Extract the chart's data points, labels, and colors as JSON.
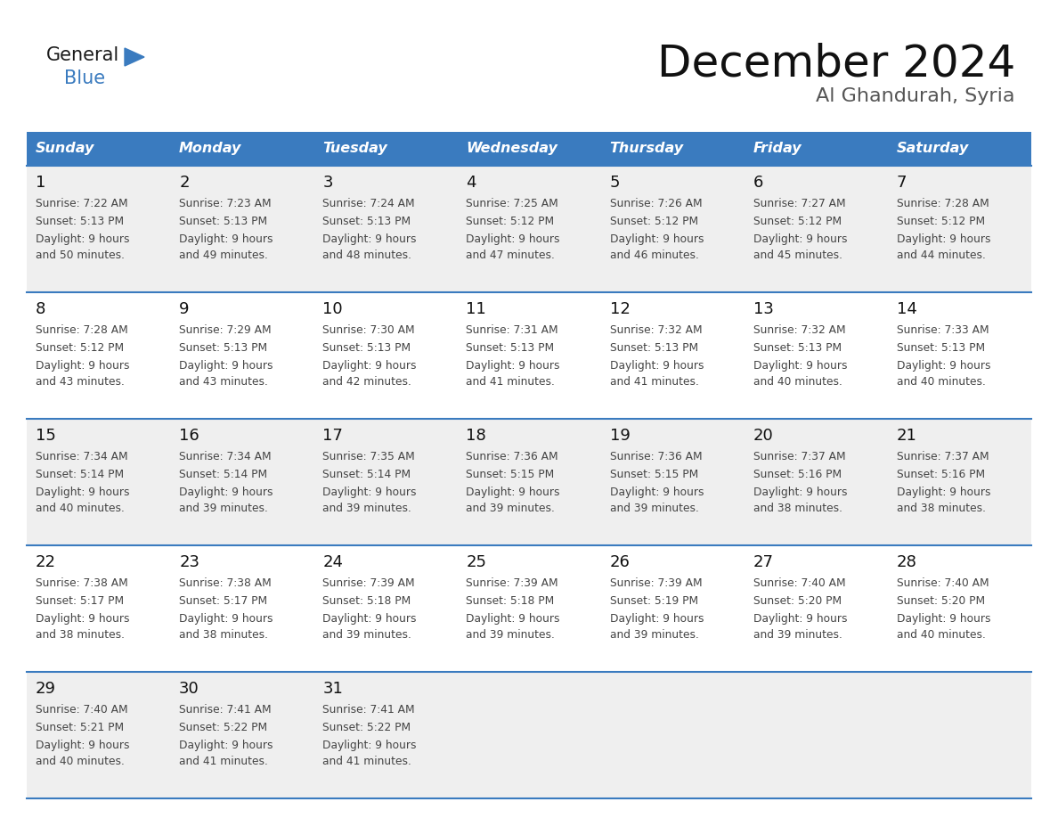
{
  "title": "December 2024",
  "subtitle": "Al Ghandurah, Syria",
  "days_of_week": [
    "Sunday",
    "Monday",
    "Tuesday",
    "Wednesday",
    "Thursday",
    "Friday",
    "Saturday"
  ],
  "header_bg": "#3a7bbf",
  "header_text": "#ffffff",
  "row_bg_odd": "#efefef",
  "row_bg_even": "#ffffff",
  "cell_text_color": "#444444",
  "day_num_color": "#111111",
  "border_color": "#3a7bbf",
  "logo_general_color": "#1a1a1a",
  "logo_blue_color": "#3a7bbf",
  "calendar_data": [
    [
      {
        "day": 1,
        "sunrise": "7:22 AM",
        "sunset": "5:13 PM",
        "daylight_h": "9 hours",
        "daylight_m": "and 50 minutes."
      },
      {
        "day": 2,
        "sunrise": "7:23 AM",
        "sunset": "5:13 PM",
        "daylight_h": "9 hours",
        "daylight_m": "and 49 minutes."
      },
      {
        "day": 3,
        "sunrise": "7:24 AM",
        "sunset": "5:13 PM",
        "daylight_h": "9 hours",
        "daylight_m": "and 48 minutes."
      },
      {
        "day": 4,
        "sunrise": "7:25 AM",
        "sunset": "5:12 PM",
        "daylight_h": "9 hours",
        "daylight_m": "and 47 minutes."
      },
      {
        "day": 5,
        "sunrise": "7:26 AM",
        "sunset": "5:12 PM",
        "daylight_h": "9 hours",
        "daylight_m": "and 46 minutes."
      },
      {
        "day": 6,
        "sunrise": "7:27 AM",
        "sunset": "5:12 PM",
        "daylight_h": "9 hours",
        "daylight_m": "and 45 minutes."
      },
      {
        "day": 7,
        "sunrise": "7:28 AM",
        "sunset": "5:12 PM",
        "daylight_h": "9 hours",
        "daylight_m": "and 44 minutes."
      }
    ],
    [
      {
        "day": 8,
        "sunrise": "7:28 AM",
        "sunset": "5:12 PM",
        "daylight_h": "9 hours",
        "daylight_m": "and 43 minutes."
      },
      {
        "day": 9,
        "sunrise": "7:29 AM",
        "sunset": "5:13 PM",
        "daylight_h": "9 hours",
        "daylight_m": "and 43 minutes."
      },
      {
        "day": 10,
        "sunrise": "7:30 AM",
        "sunset": "5:13 PM",
        "daylight_h": "9 hours",
        "daylight_m": "and 42 minutes."
      },
      {
        "day": 11,
        "sunrise": "7:31 AM",
        "sunset": "5:13 PM",
        "daylight_h": "9 hours",
        "daylight_m": "and 41 minutes."
      },
      {
        "day": 12,
        "sunrise": "7:32 AM",
        "sunset": "5:13 PM",
        "daylight_h": "9 hours",
        "daylight_m": "and 41 minutes."
      },
      {
        "day": 13,
        "sunrise": "7:32 AM",
        "sunset": "5:13 PM",
        "daylight_h": "9 hours",
        "daylight_m": "and 40 minutes."
      },
      {
        "day": 14,
        "sunrise": "7:33 AM",
        "sunset": "5:13 PM",
        "daylight_h": "9 hours",
        "daylight_m": "and 40 minutes."
      }
    ],
    [
      {
        "day": 15,
        "sunrise": "7:34 AM",
        "sunset": "5:14 PM",
        "daylight_h": "9 hours",
        "daylight_m": "and 40 minutes."
      },
      {
        "day": 16,
        "sunrise": "7:34 AM",
        "sunset": "5:14 PM",
        "daylight_h": "9 hours",
        "daylight_m": "and 39 minutes."
      },
      {
        "day": 17,
        "sunrise": "7:35 AM",
        "sunset": "5:14 PM",
        "daylight_h": "9 hours",
        "daylight_m": "and 39 minutes."
      },
      {
        "day": 18,
        "sunrise": "7:36 AM",
        "sunset": "5:15 PM",
        "daylight_h": "9 hours",
        "daylight_m": "and 39 minutes."
      },
      {
        "day": 19,
        "sunrise": "7:36 AM",
        "sunset": "5:15 PM",
        "daylight_h": "9 hours",
        "daylight_m": "and 39 minutes."
      },
      {
        "day": 20,
        "sunrise": "7:37 AM",
        "sunset": "5:16 PM",
        "daylight_h": "9 hours",
        "daylight_m": "and 38 minutes."
      },
      {
        "day": 21,
        "sunrise": "7:37 AM",
        "sunset": "5:16 PM",
        "daylight_h": "9 hours",
        "daylight_m": "and 38 minutes."
      }
    ],
    [
      {
        "day": 22,
        "sunrise": "7:38 AM",
        "sunset": "5:17 PM",
        "daylight_h": "9 hours",
        "daylight_m": "and 38 minutes."
      },
      {
        "day": 23,
        "sunrise": "7:38 AM",
        "sunset": "5:17 PM",
        "daylight_h": "9 hours",
        "daylight_m": "and 38 minutes."
      },
      {
        "day": 24,
        "sunrise": "7:39 AM",
        "sunset": "5:18 PM",
        "daylight_h": "9 hours",
        "daylight_m": "and 39 minutes."
      },
      {
        "day": 25,
        "sunrise": "7:39 AM",
        "sunset": "5:18 PM",
        "daylight_h": "9 hours",
        "daylight_m": "and 39 minutes."
      },
      {
        "day": 26,
        "sunrise": "7:39 AM",
        "sunset": "5:19 PM",
        "daylight_h": "9 hours",
        "daylight_m": "and 39 minutes."
      },
      {
        "day": 27,
        "sunrise": "7:40 AM",
        "sunset": "5:20 PM",
        "daylight_h": "9 hours",
        "daylight_m": "and 39 minutes."
      },
      {
        "day": 28,
        "sunrise": "7:40 AM",
        "sunset": "5:20 PM",
        "daylight_h": "9 hours",
        "daylight_m": "and 40 minutes."
      }
    ],
    [
      {
        "day": 29,
        "sunrise": "7:40 AM",
        "sunset": "5:21 PM",
        "daylight_h": "9 hours",
        "daylight_m": "and 40 minutes."
      },
      {
        "day": 30,
        "sunrise": "7:41 AM",
        "sunset": "5:22 PM",
        "daylight_h": "9 hours",
        "daylight_m": "and 41 minutes."
      },
      {
        "day": 31,
        "sunrise": "7:41 AM",
        "sunset": "5:22 PM",
        "daylight_h": "9 hours",
        "daylight_m": "and 41 minutes."
      },
      null,
      null,
      null,
      null
    ]
  ]
}
